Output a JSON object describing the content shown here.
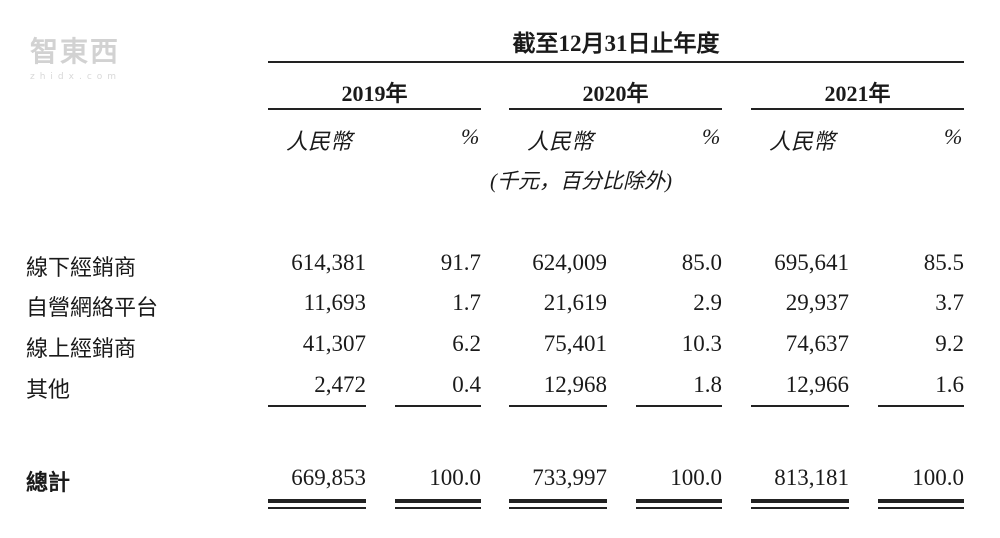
{
  "header": {
    "period_title": "截至12月31日止年度",
    "years": [
      "2019年",
      "2020年",
      "2021年"
    ],
    "currency_label": "人民幣",
    "percent_label": "%",
    "unit_note": "(千元，百分比除外)"
  },
  "rows": [
    {
      "label": "線下經銷商",
      "values": [
        "614,381",
        "91.7",
        "624,009",
        "85.0",
        "695,641",
        "85.5"
      ]
    },
    {
      "label": "自營網絡平台",
      "values": [
        "11,693",
        "1.7",
        "21,619",
        "2.9",
        "29,937",
        "3.7"
      ]
    },
    {
      "label": "線上經銷商",
      "values": [
        "41,307",
        "6.2",
        "75,401",
        "10.3",
        "74,637",
        "9.2"
      ]
    },
    {
      "label": "其他",
      "values": [
        "2,472",
        "0.4",
        "12,968",
        "1.8",
        "12,966",
        "1.6"
      ]
    }
  ],
  "total": {
    "label": "總計",
    "values": [
      "669,853",
      "100.0",
      "733,997",
      "100.0",
      "813,181",
      "100.0"
    ]
  },
  "watermark": {
    "logo": "智東西",
    "url": "zhidx.com"
  }
}
